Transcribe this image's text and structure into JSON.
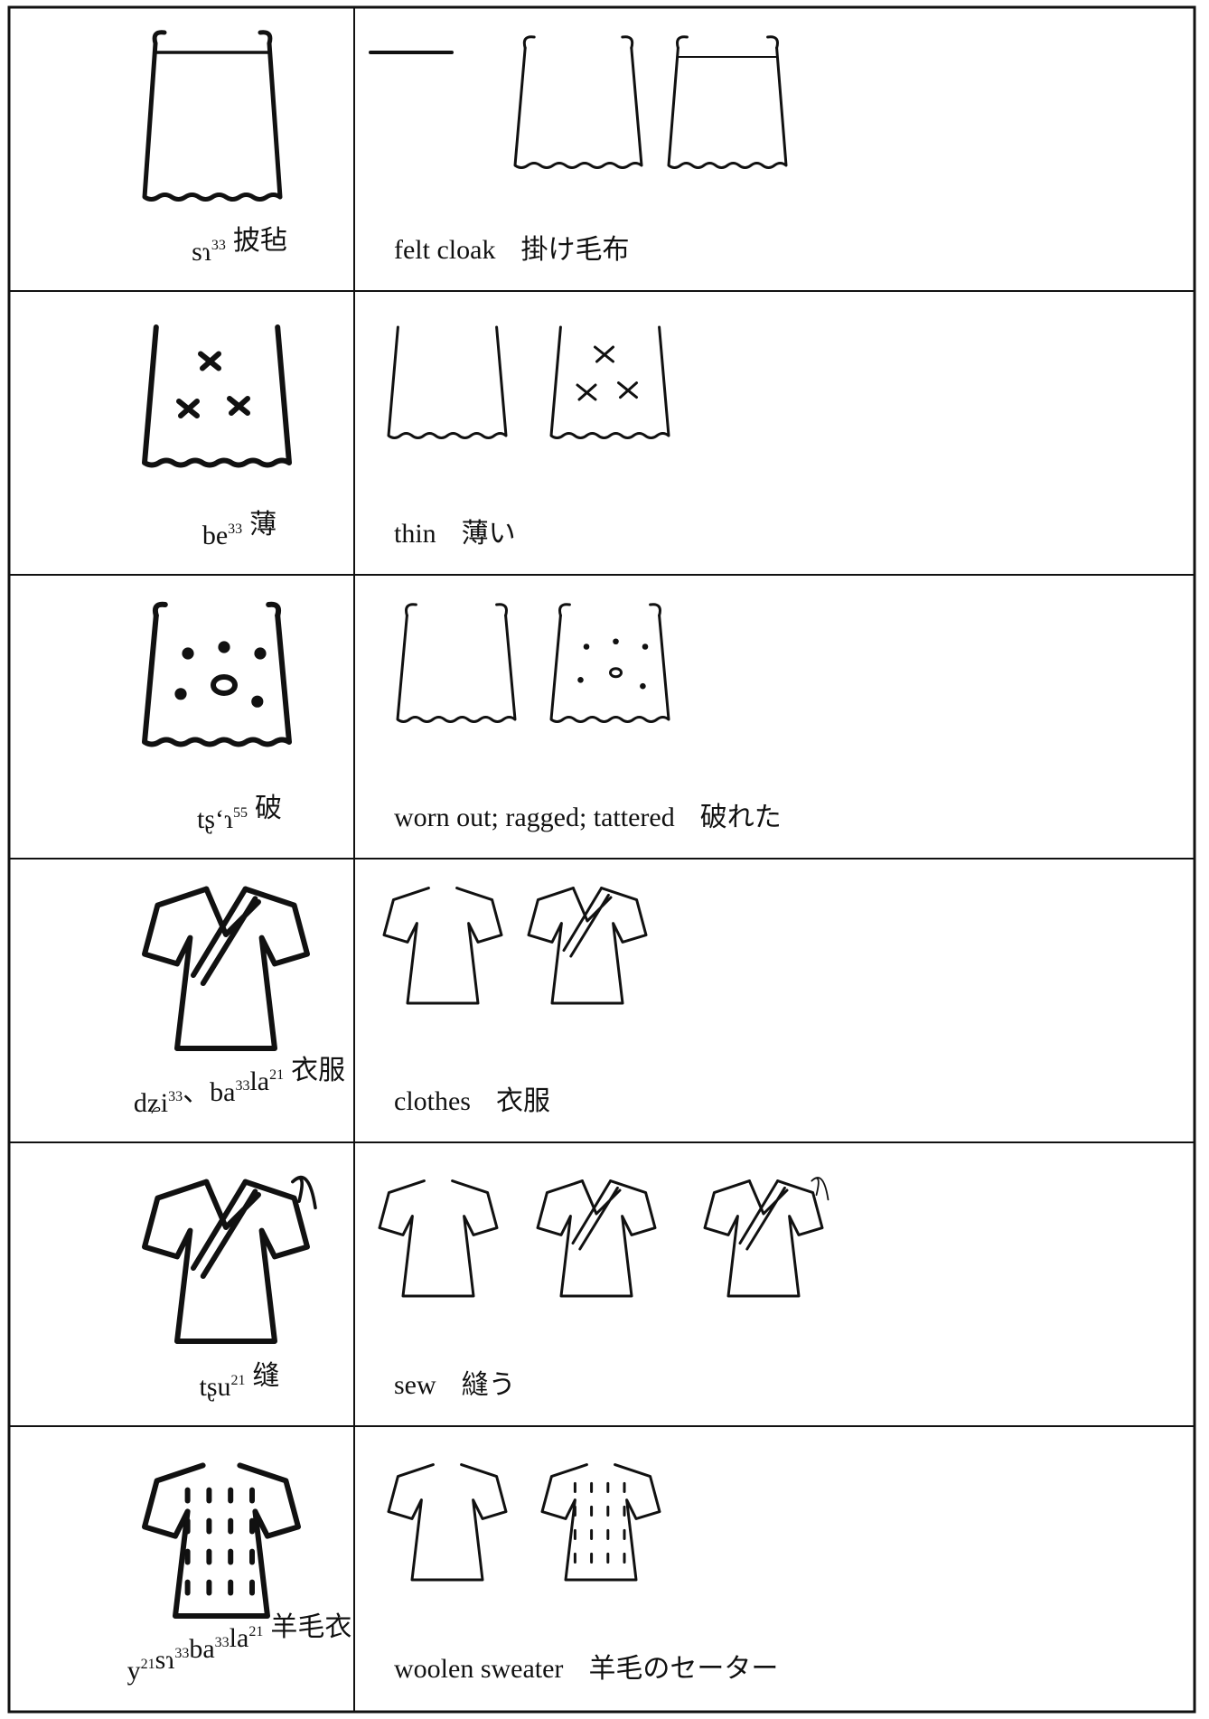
{
  "table": {
    "rows": [
      {
        "reading": [
          [
            "sɿ",
            "33"
          ]
        ],
        "chinese": "披毡",
        "english": "felt cloak",
        "japanese": "掛け毛布"
      },
      {
        "reading": [
          [
            "be",
            "33"
          ]
        ],
        "chinese": "薄",
        "english": "thin",
        "japanese": "薄い"
      },
      {
        "reading": [
          [
            "tʂʻɿ",
            "55"
          ]
        ],
        "chinese": "破",
        "english": "worn out; ragged; tattered",
        "japanese": "破れた"
      },
      {
        "reading": [
          [
            "dʑi",
            "33"
          ],
          [
            "、ba",
            "33"
          ],
          [
            "la",
            "21"
          ]
        ],
        "chinese": "衣服",
        "english": "clothes",
        "japanese": "衣服"
      },
      {
        "reading": [
          [
            "tʂu",
            "21"
          ]
        ],
        "chinese": "缝",
        "english": "sew",
        "japanese": "縫う"
      },
      {
        "reading": [
          [
            "y",
            "21"
          ],
          [
            "sɿ",
            "33"
          ],
          [
            "ba",
            "33"
          ],
          [
            "la",
            "21"
          ]
        ],
        "chinese": "羊毛衣",
        "english": "woolen sweater",
        "japanese": "羊毛のセーター"
      }
    ]
  }
}
